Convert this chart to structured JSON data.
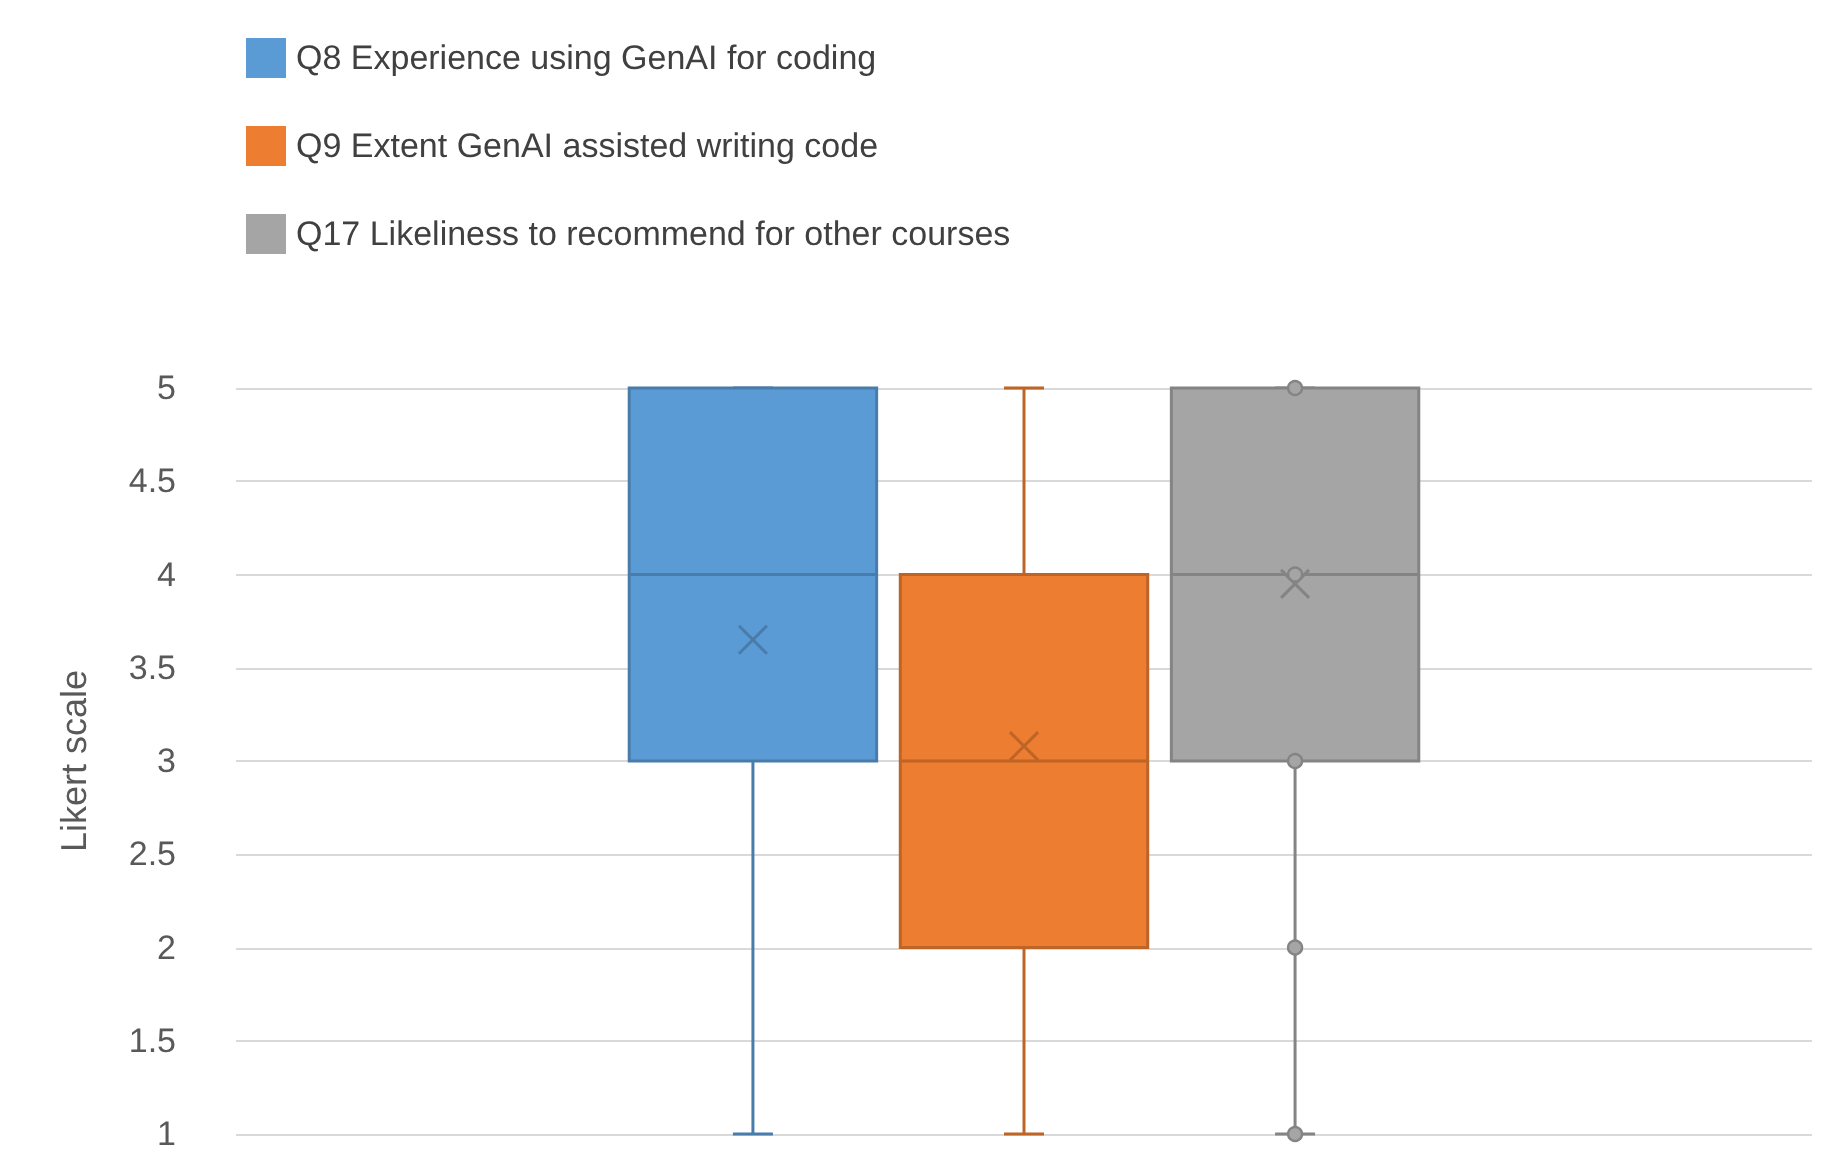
{
  "chart_data": {
    "type": "box",
    "ylabel": "Likert scale",
    "categories": [
      null
    ],
    "ylim": [
      1,
      5
    ],
    "yticks": [
      1,
      1.5,
      2,
      2.5,
      3,
      3.5,
      4,
      4.5,
      5
    ],
    "grid": "y",
    "legend": "top left",
    "series": [
      {
        "name": "Q8 Experience using GenAI for coding",
        "color": "#5b9bd5",
        "boxes": [
          {
            "low": 1,
            "q1": 3,
            "median": 4,
            "q3": 5,
            "high": 5,
            "mean": 3.65
          }
        ]
      },
      {
        "name": "Q9 Extent GenAI assisted writing code",
        "color": "#ed7d31",
        "boxes": [
          {
            "low": 1,
            "q1": 2,
            "median": 3,
            "q3": 4,
            "high": 5,
            "mean": 3.08
          }
        ]
      },
      {
        "name": "Q17 Likeliness to recommend for other courses",
        "color": "#a5a5a5",
        "boxes": [
          {
            "low": 1,
            "q1": 3,
            "median": 4,
            "q3": 5,
            "high": 5,
            "mean": 3.95,
            "outliers": [
              1,
              2,
              3,
              4,
              5
            ]
          }
        ]
      }
    ]
  }
}
